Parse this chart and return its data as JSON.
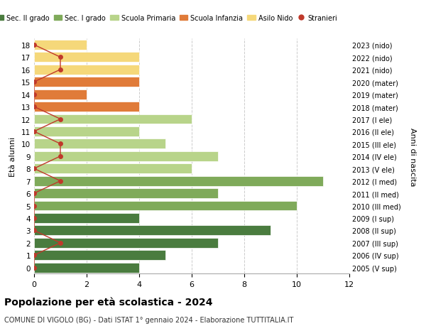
{
  "ages": [
    18,
    17,
    16,
    15,
    14,
    13,
    12,
    11,
    10,
    9,
    8,
    7,
    6,
    5,
    4,
    3,
    2,
    1,
    0
  ],
  "right_labels": [
    "2005 (V sup)",
    "2006 (IV sup)",
    "2007 (III sup)",
    "2008 (II sup)",
    "2009 (I sup)",
    "2010 (III med)",
    "2011 (II med)",
    "2012 (I med)",
    "2013 (V ele)",
    "2014 (IV ele)",
    "2015 (III ele)",
    "2016 (II ele)",
    "2017 (I ele)",
    "2018 (mater)",
    "2019 (mater)",
    "2020 (mater)",
    "2021 (nido)",
    "2022 (nido)",
    "2023 (nido)"
  ],
  "bar_values": [
    4,
    5,
    7,
    9,
    4,
    10,
    7,
    11,
    6,
    7,
    5,
    4,
    6,
    4,
    2,
    4,
    4,
    4,
    2
  ],
  "bar_colors": [
    "#4a7c3f",
    "#4a7c3f",
    "#4a7c3f",
    "#4a7c3f",
    "#4a7c3f",
    "#7faa5a",
    "#7faa5a",
    "#7faa5a",
    "#b8d48a",
    "#b8d48a",
    "#b8d48a",
    "#b8d48a",
    "#b8d48a",
    "#e07b39",
    "#e07b39",
    "#e07b39",
    "#f5d87a",
    "#f5d87a",
    "#f5d87a"
  ],
  "stranieri_x": [
    0,
    0,
    1,
    0,
    0,
    0,
    0,
    1,
    0,
    1,
    1,
    0,
    1,
    0,
    0,
    0,
    1,
    1,
    0
  ],
  "stranieri_color": "#c0392b",
  "legend_labels": [
    "Sec. II grado",
    "Sec. I grado",
    "Scuola Primaria",
    "Scuola Infanzia",
    "Asilo Nido",
    "Stranieri"
  ],
  "legend_colors": [
    "#4a7c3f",
    "#7faa5a",
    "#b8d48a",
    "#e07b39",
    "#f5d87a",
    "#c0392b"
  ],
  "ylabel_left": "Età alunni",
  "ylabel_right": "Anni di nascita",
  "xlim": [
    0,
    12
  ],
  "xticks": [
    0,
    2,
    4,
    6,
    8,
    10,
    12
  ],
  "title": "Popolazione per età scolastica - 2024",
  "subtitle": "COMUNE DI VIGOLO (BG) - Dati ISTAT 1° gennaio 2024 - Elaborazione TUTTITALIA.IT",
  "bg_color": "#ffffff",
  "grid_color": "#cccccc",
  "bar_edge_color": "#ffffff"
}
